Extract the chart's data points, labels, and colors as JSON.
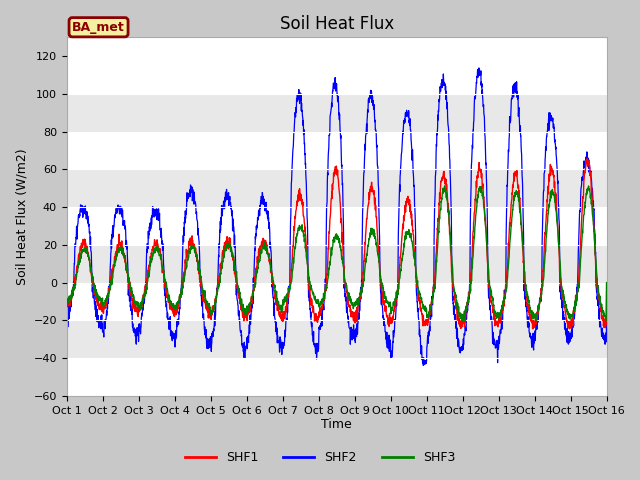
{
  "title": "Soil Heat Flux",
  "ylabel": "Soil Heat Flux (W/m2)",
  "xlabel": "Time",
  "ylim": [
    -60,
    130
  ],
  "yticks": [
    -60,
    -40,
    -20,
    0,
    20,
    40,
    60,
    80,
    100,
    120
  ],
  "xlim": [
    0,
    15
  ],
  "xtick_positions": [
    0,
    1,
    2,
    3,
    4,
    5,
    6,
    7,
    8,
    9,
    10,
    11,
    12,
    13,
    14,
    15
  ],
  "xtick_labels": [
    "Oct 1",
    "Oct 2",
    "Oct 3",
    "Oct 4",
    "Oct 5",
    "Oct 6",
    "Oct 7",
    "Oct 8",
    "Oct 9",
    "Oct 10",
    "Oct 11",
    "Oct 12",
    "Oct 13",
    "Oct 14",
    "Oct 15",
    "Oct 16"
  ],
  "legend_box_label": "BA_met",
  "legend_entries": [
    "SHF1",
    "SHF2",
    "SHF3"
  ],
  "line_colors": [
    "red",
    "blue",
    "green"
  ],
  "fig_bg": "#c8c8c8",
  "plot_bg": "#ffffff",
  "band_color": "#e8e8e8",
  "title_fontsize": 12,
  "axis_fontsize": 9,
  "tick_fontsize": 8,
  "shf2_day_amp": [
    40,
    40,
    38,
    48,
    46,
    43,
    99,
    105,
    99,
    90,
    107,
    112,
    104,
    88,
    65
  ],
  "shf2_night_depth": [
    22,
    28,
    28,
    32,
    36,
    35,
    36,
    28,
    33,
    43,
    35,
    35,
    32,
    30,
    30
  ],
  "shf1_day_amp": [
    21,
    20,
    21,
    22,
    22,
    22,
    47,
    60,
    50,
    44,
    57,
    60,
    58,
    60,
    65
  ],
  "shf1_night_depth": [
    13,
    15,
    15,
    16,
    18,
    18,
    20,
    18,
    20,
    22,
    22,
    22,
    22,
    22,
    22
  ],
  "shf3_day_amp": [
    18,
    18,
    18,
    19,
    20,
    19,
    30,
    25,
    27,
    27,
    50,
    50,
    48,
    48,
    50
  ],
  "shf3_night_depth": [
    10,
    12,
    13,
    13,
    16,
    14,
    10,
    12,
    12,
    14,
    18,
    18,
    18,
    18,
    18
  ]
}
